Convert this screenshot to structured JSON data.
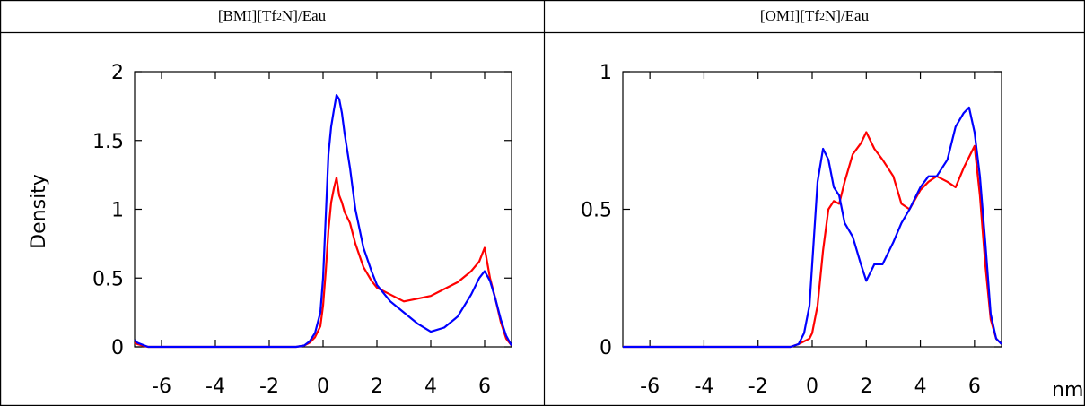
{
  "panels": [
    {
      "title_parts": [
        "[BMI][Tf",
        "2",
        "N]/Eau"
      ]
    },
    {
      "title_parts": [
        "[OMI][Tf",
        "2",
        "N]/Eau"
      ]
    }
  ],
  "ylabel": "Density",
  "xunit": "nm",
  "chart_data": [
    {
      "type": "line",
      "title": "[BMI][Tf2N]/Eau",
      "ylabel": "Density",
      "xlim": [
        -7,
        7
      ],
      "ylim": [
        0,
        2
      ],
      "xticks": [
        -6,
        -4,
        -2,
        0,
        2,
        4,
        6
      ],
      "yticks": [
        0,
        0.5,
        1,
        1.5,
        2
      ],
      "ytick_labels": [
        "0",
        "0.5",
        "1",
        "1.5",
        "2"
      ],
      "grid": false,
      "series": [
        {
          "color": "#ff0000",
          "x": [
            -7,
            -6.9,
            -6.5,
            -5,
            -3,
            -1.5,
            -1,
            -0.7,
            -0.5,
            -0.3,
            -0.1,
            0,
            0.1,
            0.2,
            0.3,
            0.4,
            0.5,
            0.6,
            0.7,
            0.8,
            1,
            1.2,
            1.5,
            1.8,
            2,
            2.5,
            3,
            3.5,
            4,
            4.5,
            5,
            5.5,
            5.8,
            6,
            6.2,
            6.4,
            6.6,
            6.8,
            7
          ],
          "y": [
            0.03,
            0.02,
            0,
            0,
            0,
            0,
            0,
            0.01,
            0.03,
            0.07,
            0.15,
            0.3,
            0.55,
            0.85,
            1.05,
            1.15,
            1.23,
            1.1,
            1.05,
            0.98,
            0.9,
            0.75,
            0.58,
            0.48,
            0.43,
            0.38,
            0.33,
            0.35,
            0.37,
            0.42,
            0.47,
            0.55,
            0.62,
            0.72,
            0.5,
            0.35,
            0.18,
            0.06,
            0.01
          ]
        },
        {
          "color": "#0000ff",
          "x": [
            -7,
            -6.9,
            -6.5,
            -5,
            -3,
            -1.5,
            -1,
            -0.7,
            -0.5,
            -0.3,
            -0.1,
            0,
            0.1,
            0.2,
            0.3,
            0.4,
            0.5,
            0.6,
            0.7,
            0.8,
            1,
            1.2,
            1.5,
            1.8,
            2,
            2.5,
            3,
            3.5,
            4,
            4.5,
            5,
            5.5,
            5.8,
            6,
            6.2,
            6.4,
            6.6,
            6.8,
            7
          ],
          "y": [
            0.05,
            0.03,
            0,
            0,
            0,
            0,
            0,
            0.01,
            0.04,
            0.1,
            0.25,
            0.5,
            0.95,
            1.4,
            1.6,
            1.72,
            1.83,
            1.8,
            1.7,
            1.55,
            1.3,
            1.0,
            0.72,
            0.55,
            0.45,
            0.33,
            0.25,
            0.17,
            0.11,
            0.14,
            0.22,
            0.38,
            0.5,
            0.55,
            0.48,
            0.35,
            0.2,
            0.08,
            0.01
          ]
        }
      ]
    },
    {
      "type": "line",
      "title": "[OMI][Tf2N]/Eau",
      "xlabel": "nm",
      "xlim": [
        -7,
        7
      ],
      "ylim": [
        0,
        1
      ],
      "xticks": [
        -6,
        -4,
        -2,
        0,
        2,
        4,
        6
      ],
      "yticks": [
        0,
        0.5,
        1
      ],
      "ytick_labels": [
        "0",
        "0.5",
        "1"
      ],
      "grid": false,
      "series": [
        {
          "color": "#ff0000",
          "x": [
            -7,
            -6,
            -4,
            -2,
            -0.8,
            -0.5,
            -0.3,
            -0.1,
            0,
            0.2,
            0.4,
            0.6,
            0.8,
            1,
            1.2,
            1.5,
            1.8,
            2,
            2.3,
            2.6,
            3,
            3.3,
            3.6,
            4,
            4.3,
            4.6,
            5,
            5.3,
            5.6,
            6,
            6.2,
            6.4,
            6.6,
            6.8,
            7
          ],
          "y": [
            0,
            0,
            0,
            0,
            0,
            0.01,
            0.02,
            0.03,
            0.05,
            0.15,
            0.35,
            0.5,
            0.53,
            0.52,
            0.6,
            0.7,
            0.74,
            0.78,
            0.72,
            0.68,
            0.62,
            0.52,
            0.5,
            0.57,
            0.6,
            0.62,
            0.6,
            0.58,
            0.65,
            0.73,
            0.55,
            0.3,
            0.1,
            0.03,
            0.01
          ]
        },
        {
          "color": "#0000ff",
          "x": [
            -7,
            -6,
            -4,
            -2,
            -0.8,
            -0.5,
            -0.3,
            -0.1,
            0,
            0.2,
            0.4,
            0.6,
            0.8,
            1,
            1.2,
            1.5,
            1.8,
            2,
            2.3,
            2.6,
            3,
            3.3,
            3.6,
            4,
            4.3,
            4.6,
            5,
            5.3,
            5.6,
            5.8,
            6,
            6.2,
            6.4,
            6.6,
            6.8,
            7
          ],
          "y": [
            0,
            0,
            0,
            0,
            0,
            0.01,
            0.05,
            0.15,
            0.3,
            0.6,
            0.72,
            0.68,
            0.58,
            0.55,
            0.45,
            0.4,
            0.3,
            0.24,
            0.3,
            0.3,
            0.38,
            0.45,
            0.5,
            0.58,
            0.62,
            0.62,
            0.68,
            0.8,
            0.85,
            0.87,
            0.78,
            0.62,
            0.38,
            0.12,
            0.03,
            0.01
          ]
        }
      ]
    }
  ]
}
